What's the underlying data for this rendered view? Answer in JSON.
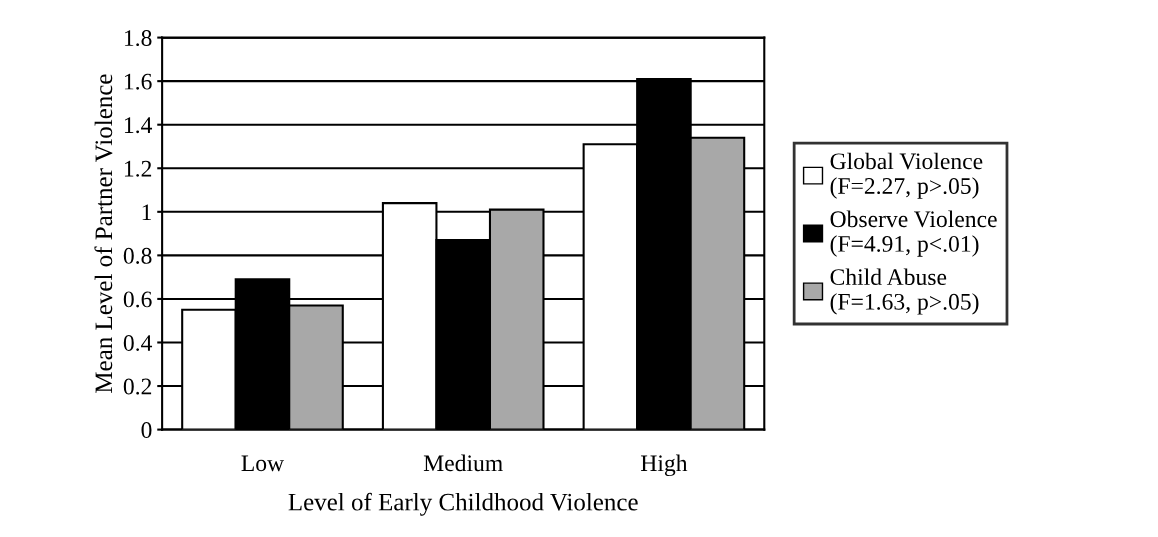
{
  "chart_data": {
    "type": "bar",
    "xlabel": "Level of Early Childhood Violence",
    "ylabel": "Mean Level of Partner Violence",
    "categories": [
      "Low",
      "Medium",
      "High"
    ],
    "series": [
      {
        "name": "Global Violence\n(F=2.27, p>.05)",
        "color": "#ffffff",
        "values": [
          0.55,
          1.04,
          1.31
        ]
      },
      {
        "name": "Observe Violence\n(F=4.91, p<.01)",
        "color": "#000000",
        "values": [
          0.69,
          0.87,
          1.61
        ]
      },
      {
        "name": "Child Abuse\n(F=1.63, p>.05)",
        "color": "#a8a8a8",
        "values": [
          0.57,
          1.01,
          1.34
        ]
      }
    ],
    "ylim": [
      0,
      1.8
    ],
    "yticks": [
      0,
      0.2,
      0.4,
      0.6,
      0.8,
      1,
      1.2,
      1.4,
      1.6,
      1.8
    ],
    "grid": "y",
    "legend": "right"
  }
}
